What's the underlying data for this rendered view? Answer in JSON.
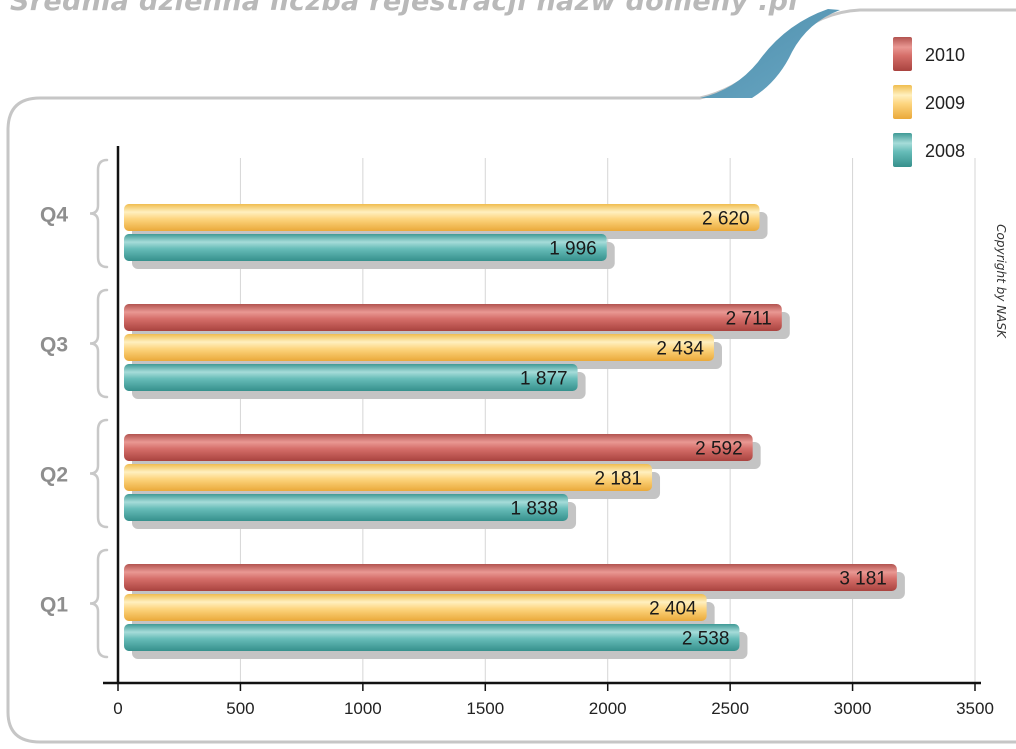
{
  "chart_data": {
    "type": "bar",
    "orientation": "horizontal",
    "title": "Średnia dzienna liczba rejestracji nazw domeny .pl",
    "categories": [
      "Q1",
      "Q2",
      "Q3",
      "Q4"
    ],
    "series": [
      {
        "name": "2010",
        "color": "#d26f6a",
        "values": [
          3181,
          2592,
          2711,
          null
        ],
        "labels": [
          "3 181",
          "2 592",
          "2 711",
          ""
        ]
      },
      {
        "name": "2009",
        "color": "#fcd27a",
        "values": [
          2404,
          2181,
          2434,
          2620
        ],
        "labels": [
          "2 404",
          "2 181",
          "2 434",
          "2 620"
        ]
      },
      {
        "name": "2008",
        "color": "#5fb7b3",
        "values": [
          2538,
          1838,
          1877,
          1996
        ],
        "labels": [
          "2 538",
          "1 838",
          "1 877",
          "1 996"
        ]
      }
    ],
    "xlim": [
      0,
      3500
    ],
    "xticks": [
      0,
      500,
      1000,
      1500,
      2000,
      2500,
      3000,
      3500
    ],
    "grid": true,
    "legend_position": "top-right",
    "copyright": "Copyright by NASK"
  }
}
